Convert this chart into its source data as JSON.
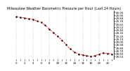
{
  "title": "Milwaukee Weather Barometric Pressure per Hour (Last 24 Hours)",
  "hours": [
    0,
    1,
    2,
    3,
    4,
    5,
    6,
    7,
    8,
    9,
    10,
    11,
    12,
    13,
    14,
    15,
    16,
    17,
    18,
    19,
    20,
    21,
    22,
    23
  ],
  "pressure": [
    29.85,
    29.82,
    29.8,
    29.78,
    29.75,
    29.7,
    29.65,
    29.55,
    29.42,
    29.3,
    29.18,
    29.05,
    28.9,
    28.75,
    28.65,
    28.58,
    28.55,
    28.52,
    28.5,
    28.52,
    28.58,
    28.62,
    28.6,
    28.58
  ],
  "ylim": [
    28.4,
    30.05
  ],
  "line_color": "#ff0000",
  "marker_color": "#000000",
  "bg_color": "#ffffff",
  "grid_color": "#aaaaaa",
  "title_fontsize": 3.5,
  "tick_fontsize": 2.8,
  "ytick_values": [
    28.5,
    28.6,
    28.7,
    28.8,
    28.9,
    29.0,
    29.1,
    29.2,
    29.3,
    29.4,
    29.5,
    29.6,
    29.7,
    29.8,
    29.9,
    30.0
  ],
  "xtick_labels": [
    "0",
    "",
    "2",
    "",
    "4",
    "",
    "6",
    "",
    "8",
    "",
    "10",
    "",
    "12",
    "",
    "14",
    "",
    "16",
    "",
    "18",
    "",
    "20",
    "",
    "22",
    ""
  ]
}
